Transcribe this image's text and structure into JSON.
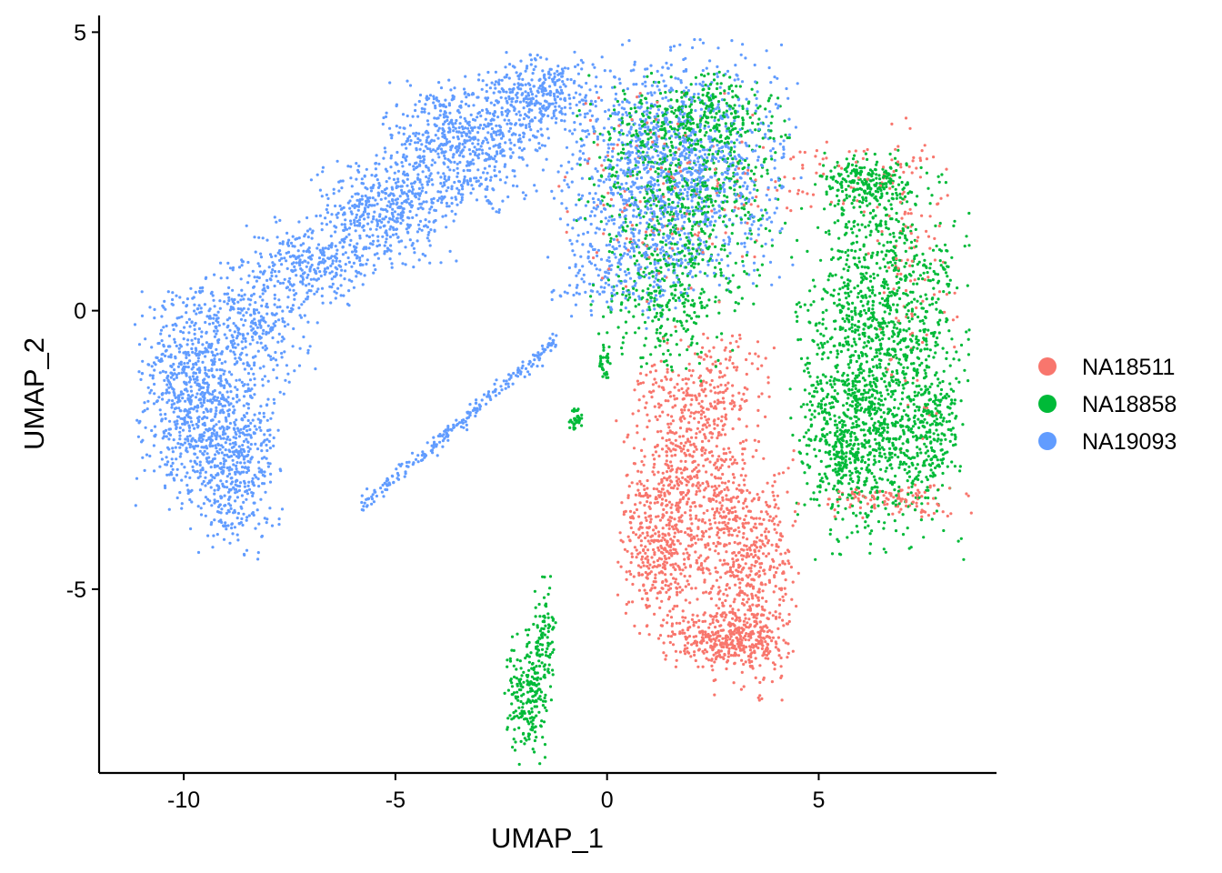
{
  "chart_data": {
    "type": "scatter",
    "title": "",
    "xlabel": "UMAP_1",
    "ylabel": "UMAP_2",
    "xlim": [
      -12,
      9.2
    ],
    "ylim": [
      -8.3,
      5.3
    ],
    "x_ticks": [
      -10,
      -5,
      0,
      5
    ],
    "x_tick_labels": [
      "-10",
      "-5",
      "0",
      "5"
    ],
    "y_ticks": [
      5,
      0,
      -5
    ],
    "y_tick_labels": [
      "5",
      "0",
      "-5"
    ],
    "grid": false,
    "legend_position": "right",
    "series": [
      {
        "name": "NA18511",
        "color": "#F8766D",
        "clusters": [
          {
            "cx": 1.9,
            "cy": -3.3,
            "sx": 0.75,
            "sy": 1.1,
            "n": 700
          },
          {
            "cx": 3.4,
            "cy": -4.8,
            "sx": 0.5,
            "sy": 1.0,
            "n": 500
          },
          {
            "cx": 2.8,
            "cy": -5.9,
            "sx": 0.7,
            "sy": 0.25,
            "n": 350
          },
          {
            "cx": 1.2,
            "cy": -4.3,
            "sx": 0.4,
            "sy": 0.7,
            "n": 250
          },
          {
            "cx": 2.4,
            "cy": -1.4,
            "sx": 0.7,
            "sy": 0.5,
            "n": 200
          },
          {
            "cx": 6.7,
            "cy": -3.4,
            "sx": 0.9,
            "sy": 0.15,
            "n": 110
          },
          {
            "cx": 7.2,
            "cy": 0.6,
            "sx": 0.5,
            "sy": 1.4,
            "n": 100
          },
          {
            "cx": 5.5,
            "cy": 2.4,
            "sx": 1.3,
            "sy": 0.3,
            "n": 80
          },
          {
            "cx": 1.3,
            "cy": 2.1,
            "sx": 1.2,
            "sy": 0.9,
            "n": 140
          }
        ]
      },
      {
        "name": "NA18858",
        "color": "#00BA38",
        "clusters": [
          {
            "cx": 6.5,
            "cy": -0.8,
            "sx": 0.9,
            "sy": 1.6,
            "n": 1500
          },
          {
            "cx": 5.7,
            "cy": -2.3,
            "sx": 0.6,
            "sy": 0.6,
            "n": 350
          },
          {
            "cx": 6.1,
            "cy": 2.3,
            "sx": 0.5,
            "sy": 0.2,
            "n": 200
          },
          {
            "cx": 7.7,
            "cy": -2.2,
            "sx": 0.3,
            "sy": 0.5,
            "n": 150
          },
          {
            "cx": 1.8,
            "cy": 2.1,
            "sx": 1.1,
            "sy": 1.0,
            "n": 700
          },
          {
            "cx": 2.2,
            "cy": 3.5,
            "sx": 0.9,
            "sy": 0.4,
            "n": 260
          },
          {
            "cx": 1.4,
            "cy": 0.1,
            "sx": 0.7,
            "sy": 0.6,
            "n": 230
          },
          {
            "cx": -1.85,
            "cy": -6.9,
            "sx": 0.25,
            "sy": 0.55,
            "n": 220
          },
          {
            "cx": -1.5,
            "cy": -5.8,
            "sx": 0.15,
            "sy": 0.45,
            "n": 80
          },
          {
            "cx": -0.75,
            "cy": -2.0,
            "sx": 0.08,
            "sy": 0.12,
            "n": 35
          },
          {
            "cx": -0.05,
            "cy": -0.95,
            "sx": 0.07,
            "sy": 0.18,
            "n": 35
          }
        ]
      },
      {
        "name": "NA19093",
        "color": "#619CFF",
        "clusters": [
          {
            "cx": -9.9,
            "cy": -1.5,
            "sx": 0.55,
            "sy": 0.9,
            "n": 650
          },
          {
            "cx": -8.8,
            "cy": -2.7,
            "sx": 0.5,
            "sy": 0.8,
            "n": 500
          },
          {
            "cx": -8.4,
            "cy": -0.3,
            "sx": 0.7,
            "sy": 0.6,
            "n": 350
          },
          {
            "cx": -7.0,
            "cy": 0.9,
            "sx": 0.7,
            "sy": 0.35,
            "n": 280
          },
          {
            "cx": -5.2,
            "cy": 1.8,
            "sx": 0.8,
            "sy": 0.45,
            "n": 450
          },
          {
            "cx": -3.4,
            "cy": 3.0,
            "sx": 0.9,
            "sy": 0.55,
            "n": 650
          },
          {
            "cx": -1.6,
            "cy": 3.9,
            "sx": 0.6,
            "sy": 0.35,
            "n": 300
          },
          {
            "cx": 1.6,
            "cy": 2.6,
            "sx": 1.3,
            "sy": 1.0,
            "n": 1300
          },
          {
            "cx": 0.4,
            "cy": 0.7,
            "sx": 0.8,
            "sy": 0.5,
            "n": 200
          },
          {
            "cx": -3.0,
            "cy": -1.9,
            "sx": 0.8,
            "sy": 0.12,
            "n": 240
          }
        ]
      }
    ]
  }
}
